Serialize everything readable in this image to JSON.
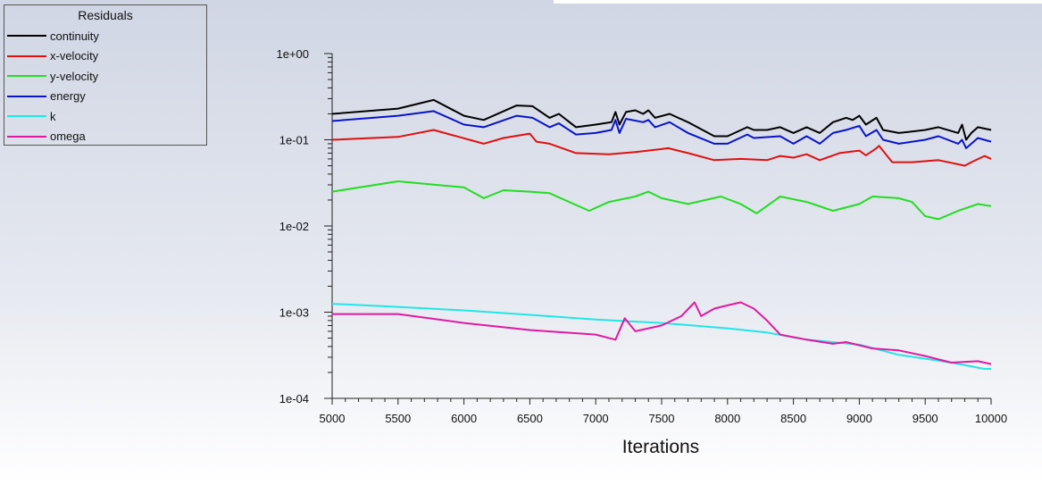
{
  "chart_data": {
    "type": "line",
    "title": "",
    "legend_title": "Residuals",
    "legend_placement": "top-left",
    "xlabel": "Iterations",
    "ylabel": "",
    "yscale": "log",
    "xlim": [
      5000,
      10000
    ],
    "ylim": [
      0.0001,
      1
    ],
    "xticks": [
      "5000",
      "5500",
      "6000",
      "6500",
      "7000",
      "7500",
      "8000",
      "8500",
      "9000",
      "9500",
      "10000"
    ],
    "yticks": [
      "1e+00",
      "1e-01",
      "1e-02",
      "1e-03",
      "1e-04"
    ],
    "series": [
      {
        "name": "continuity",
        "color": "#000000",
        "points": [
          [
            5000,
            0.2
          ],
          [
            5500,
            0.23
          ],
          [
            5770,
            0.29
          ],
          [
            6000,
            0.19
          ],
          [
            6150,
            0.17
          ],
          [
            6400,
            0.25
          ],
          [
            6520,
            0.245
          ],
          [
            6650,
            0.18
          ],
          [
            6720,
            0.2
          ],
          [
            6850,
            0.14
          ],
          [
            7000,
            0.15
          ],
          [
            7120,
            0.16
          ],
          [
            7150,
            0.21
          ],
          [
            7180,
            0.15
          ],
          [
            7230,
            0.21
          ],
          [
            7300,
            0.22
          ],
          [
            7360,
            0.2
          ],
          [
            7400,
            0.22
          ],
          [
            7450,
            0.18
          ],
          [
            7560,
            0.2
          ],
          [
            7700,
            0.16
          ],
          [
            7900,
            0.11
          ],
          [
            8000,
            0.11
          ],
          [
            8150,
            0.14
          ],
          [
            8200,
            0.13
          ],
          [
            8300,
            0.13
          ],
          [
            8400,
            0.14
          ],
          [
            8500,
            0.12
          ],
          [
            8600,
            0.14
          ],
          [
            8700,
            0.12
          ],
          [
            8800,
            0.16
          ],
          [
            8900,
            0.18
          ],
          [
            8950,
            0.17
          ],
          [
            9000,
            0.19
          ],
          [
            9050,
            0.15
          ],
          [
            9130,
            0.18
          ],
          [
            9180,
            0.13
          ],
          [
            9300,
            0.12
          ],
          [
            9500,
            0.13
          ],
          [
            9600,
            0.14
          ],
          [
            9750,
            0.12
          ],
          [
            9780,
            0.15
          ],
          [
            9810,
            0.1
          ],
          [
            9850,
            0.12
          ],
          [
            9900,
            0.14
          ],
          [
            10000,
            0.13
          ]
        ]
      },
      {
        "name": "x-velocity",
        "color": "#e01010",
        "points": [
          [
            5000,
            0.1
          ],
          [
            5500,
            0.108
          ],
          [
            5770,
            0.13
          ],
          [
            6150,
            0.09
          ],
          [
            6300,
            0.105
          ],
          [
            6500,
            0.118
          ],
          [
            6550,
            0.095
          ],
          [
            6650,
            0.09
          ],
          [
            6850,
            0.07
          ],
          [
            7100,
            0.068
          ],
          [
            7300,
            0.072
          ],
          [
            7500,
            0.078
          ],
          [
            7550,
            0.08
          ],
          [
            7700,
            0.07
          ],
          [
            7900,
            0.058
          ],
          [
            8100,
            0.06
          ],
          [
            8300,
            0.058
          ],
          [
            8400,
            0.065
          ],
          [
            8500,
            0.062
          ],
          [
            8600,
            0.068
          ],
          [
            8700,
            0.058
          ],
          [
            8850,
            0.07
          ],
          [
            9000,
            0.075
          ],
          [
            9050,
            0.066
          ],
          [
            9130,
            0.08
          ],
          [
            9150,
            0.085
          ],
          [
            9250,
            0.055
          ],
          [
            9400,
            0.055
          ],
          [
            9600,
            0.058
          ],
          [
            9800,
            0.05
          ],
          [
            9850,
            0.055
          ],
          [
            9950,
            0.065
          ],
          [
            10000,
            0.06
          ]
        ]
      },
      {
        "name": "y-velocity",
        "color": "#22dd22",
        "points": [
          [
            5000,
            0.025
          ],
          [
            5500,
            0.033
          ],
          [
            6000,
            0.028
          ],
          [
            6150,
            0.021
          ],
          [
            6300,
            0.026
          ],
          [
            6500,
            0.025
          ],
          [
            6650,
            0.024
          ],
          [
            6950,
            0.015
          ],
          [
            7100,
            0.019
          ],
          [
            7300,
            0.022
          ],
          [
            7400,
            0.025
          ],
          [
            7500,
            0.021
          ],
          [
            7700,
            0.018
          ],
          [
            7950,
            0.022
          ],
          [
            8100,
            0.018
          ],
          [
            8220,
            0.014
          ],
          [
            8400,
            0.022
          ],
          [
            8600,
            0.019
          ],
          [
            8800,
            0.015
          ],
          [
            9000,
            0.018
          ],
          [
            9100,
            0.022
          ],
          [
            9300,
            0.021
          ],
          [
            9400,
            0.019
          ],
          [
            9500,
            0.013
          ],
          [
            9600,
            0.012
          ],
          [
            9750,
            0.015
          ],
          [
            9900,
            0.018
          ],
          [
            10000,
            0.017
          ]
        ]
      },
      {
        "name": "energy",
        "color": "#0a14c8",
        "points": [
          [
            5000,
            0.165
          ],
          [
            5500,
            0.19
          ],
          [
            5770,
            0.215
          ],
          [
            6000,
            0.15
          ],
          [
            6150,
            0.14
          ],
          [
            6400,
            0.19
          ],
          [
            6520,
            0.18
          ],
          [
            6650,
            0.14
          ],
          [
            6720,
            0.155
          ],
          [
            6850,
            0.115
          ],
          [
            7000,
            0.12
          ],
          [
            7120,
            0.13
          ],
          [
            7150,
            0.17
          ],
          [
            7180,
            0.12
          ],
          [
            7230,
            0.175
          ],
          [
            7360,
            0.16
          ],
          [
            7400,
            0.17
          ],
          [
            7450,
            0.14
          ],
          [
            7560,
            0.16
          ],
          [
            7700,
            0.12
          ],
          [
            7900,
            0.09
          ],
          [
            8000,
            0.09
          ],
          [
            8150,
            0.115
          ],
          [
            8200,
            0.105
          ],
          [
            8400,
            0.11
          ],
          [
            8500,
            0.09
          ],
          [
            8600,
            0.11
          ],
          [
            8700,
            0.09
          ],
          [
            8800,
            0.12
          ],
          [
            8900,
            0.13
          ],
          [
            9000,
            0.145
          ],
          [
            9050,
            0.11
          ],
          [
            9130,
            0.13
          ],
          [
            9180,
            0.1
          ],
          [
            9300,
            0.09
          ],
          [
            9500,
            0.1
          ],
          [
            9600,
            0.11
          ],
          [
            9750,
            0.09
          ],
          [
            9780,
            0.1
          ],
          [
            9810,
            0.08
          ],
          [
            9850,
            0.09
          ],
          [
            9900,
            0.105
          ],
          [
            10000,
            0.095
          ]
        ]
      },
      {
        "name": "k",
        "color": "#22e6e6",
        "points": [
          [
            5000,
            0.00125
          ],
          [
            5500,
            0.00115
          ],
          [
            6000,
            0.00105
          ],
          [
            6500,
            0.00093
          ],
          [
            7000,
            0.00082
          ],
          [
            7500,
            0.00075
          ],
          [
            8000,
            0.00065
          ],
          [
            8300,
            0.00058
          ],
          [
            8600,
            0.00048
          ],
          [
            9000,
            0.00042
          ],
          [
            9300,
            0.00032
          ],
          [
            9700,
            0.00026
          ],
          [
            9950,
            0.00022
          ],
          [
            10000,
            0.00022
          ]
        ]
      },
      {
        "name": "omega",
        "color": "#e01aa0",
        "points": [
          [
            5000,
            0.00095
          ],
          [
            5500,
            0.00095
          ],
          [
            6000,
            0.00075
          ],
          [
            6500,
            0.00062
          ],
          [
            7000,
            0.00055
          ],
          [
            7150,
            0.00048
          ],
          [
            7220,
            0.00085
          ],
          [
            7300,
            0.0006
          ],
          [
            7500,
            0.0007
          ],
          [
            7650,
            0.0009
          ],
          [
            7750,
            0.0013
          ],
          [
            7800,
            0.0009
          ],
          [
            7900,
            0.0011
          ],
          [
            8000,
            0.0012
          ],
          [
            8100,
            0.0013
          ],
          [
            8200,
            0.0011
          ],
          [
            8300,
            0.0008
          ],
          [
            8400,
            0.00055
          ],
          [
            8600,
            0.00048
          ],
          [
            8800,
            0.00043
          ],
          [
            8900,
            0.00045
          ],
          [
            9100,
            0.00038
          ],
          [
            9300,
            0.00036
          ],
          [
            9500,
            0.00031
          ],
          [
            9700,
            0.00026
          ],
          [
            9900,
            0.00027
          ],
          [
            10000,
            0.00025
          ]
        ]
      }
    ]
  }
}
